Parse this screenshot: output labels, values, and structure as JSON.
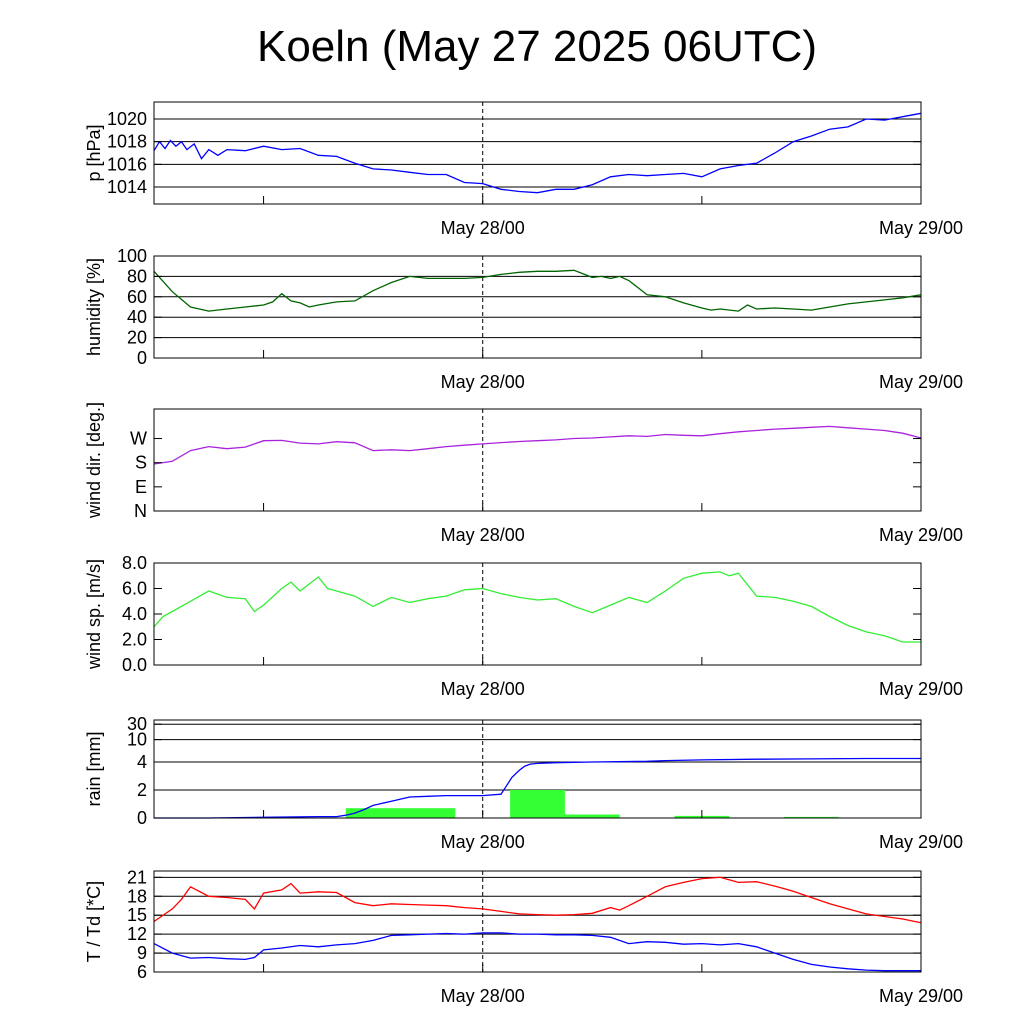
{
  "title": "Koeln (May 27 2025 06UTC)",
  "x_axis": {
    "labels": [
      "May 28/00",
      "May 29/00"
    ],
    "range_hours": [
      0,
      42
    ],
    "label_hours": [
      18,
      42
    ],
    "tick_hours": [
      6,
      18,
      30,
      42
    ],
    "dashed_hour": 18
  },
  "chart_data": [
    {
      "type": "line",
      "ylabel": "p [hPa]",
      "ylim": [
        1012.5,
        1021.5
      ],
      "yticks": [
        1014,
        1016,
        1018,
        1020
      ],
      "tick_labels": [
        "1014",
        "1016",
        "1018",
        "1020"
      ],
      "grid": true,
      "series": [
        {
          "color": "#0000ff",
          "x": [
            0,
            0.3,
            0.6,
            0.9,
            1.2,
            1.5,
            1.8,
            2.2,
            2.6,
            3,
            3.5,
            4,
            5,
            6,
            7,
            8,
            9,
            10,
            11,
            12,
            13,
            14,
            15,
            16,
            17,
            18,
            19,
            20,
            21,
            22,
            23,
            24,
            25,
            26,
            27,
            28,
            29,
            30,
            31,
            32,
            33,
            34,
            35,
            36,
            37,
            38,
            39,
            40,
            41,
            42
          ],
          "values": [
            1017.2,
            1018.0,
            1017.4,
            1018.1,
            1017.6,
            1018.0,
            1017.3,
            1017.8,
            1016.5,
            1017.3,
            1016.8,
            1017.3,
            1017.2,
            1017.6,
            1017.3,
            1017.4,
            1016.8,
            1016.7,
            1016.1,
            1015.6,
            1015.5,
            1015.3,
            1015.1,
            1015.1,
            1014.4,
            1014.3,
            1013.8,
            1013.6,
            1013.5,
            1013.8,
            1013.8,
            1014.2,
            1014.9,
            1015.1,
            1015.0,
            1015.1,
            1015.2,
            1014.9,
            1015.6,
            1015.9,
            1016.1,
            1017.0,
            1018.0,
            1018.5,
            1019.1,
            1019.3,
            1020.0,
            1019.9,
            1020.2,
            1020.5
          ]
        }
      ]
    },
    {
      "type": "line",
      "ylabel": "humidity [%]",
      "ylim": [
        0,
        100
      ],
      "yticks": [
        0,
        20,
        40,
        60,
        80,
        100
      ],
      "tick_labels": [
        "0",
        "20",
        "40",
        "60",
        "80",
        "100"
      ],
      "grid": true,
      "series": [
        {
          "color": "#006400",
          "x": [
            0,
            1,
            2,
            3,
            4,
            5,
            6,
            6.5,
            7,
            7.5,
            8,
            8.5,
            9,
            10,
            11,
            12,
            13,
            14,
            15,
            16,
            17,
            18,
            19,
            20,
            21,
            22,
            23,
            24,
            24.5,
            25,
            25.5,
            26,
            27,
            28,
            29,
            30,
            30.5,
            31,
            32,
            32.5,
            33,
            34,
            35,
            36,
            37,
            38,
            39,
            40,
            41,
            42
          ],
          "values": [
            85,
            65,
            50,
            46,
            48,
            50,
            52,
            55,
            63,
            56,
            54,
            50,
            52,
            55,
            56,
            66,
            74,
            80,
            78,
            78,
            78,
            79,
            82,
            84,
            85,
            85,
            86,
            79,
            80,
            78,
            80,
            76,
            62,
            60,
            54,
            49,
            47,
            48,
            46,
            52,
            48,
            49,
            48,
            47,
            50,
            53,
            55,
            57,
            59,
            62
          ]
        }
      ]
    },
    {
      "type": "line",
      "ylabel": "wind dir. [deg.]",
      "ylim": [
        0,
        380
      ],
      "yticks": [
        0,
        90,
        180,
        270
      ],
      "tick_labels": [
        "N",
        "E",
        "S",
        "W"
      ],
      "grid": false,
      "series": [
        {
          "color": "#aa22dd",
          "x": [
            0,
            1,
            2,
            3,
            4,
            5,
            6,
            7,
            8,
            9,
            10,
            11,
            12,
            13,
            14,
            15,
            16,
            17,
            18,
            19,
            20,
            21,
            22,
            23,
            24,
            25,
            26,
            27,
            28,
            29,
            30,
            31,
            32,
            33,
            34,
            35,
            36,
            37,
            38,
            39,
            40,
            41,
            42
          ],
          "values": [
            175,
            185,
            225,
            240,
            232,
            238,
            262,
            263,
            253,
            250,
            258,
            254,
            225,
            228,
            225,
            232,
            240,
            245,
            250,
            255,
            259,
            262,
            265,
            270,
            272,
            276,
            280,
            278,
            285,
            282,
            280,
            288,
            295,
            300,
            305,
            308,
            312,
            315,
            310,
            305,
            300,
            290,
            272
          ]
        }
      ]
    },
    {
      "type": "line",
      "ylabel": "wind sp. [m/s]",
      "ylim": [
        0,
        8
      ],
      "yticks": [
        0,
        2,
        4,
        6,
        8
      ],
      "tick_labels": [
        "0.0",
        "2.0",
        "4.0",
        "6.0",
        "8.0"
      ],
      "grid": false,
      "series": [
        {
          "color": "#33ee33",
          "x": [
            0,
            0.5,
            1,
            2,
            3,
            4,
            5,
            5.5,
            6,
            7,
            7.5,
            8,
            9,
            9.5,
            10,
            11,
            12,
            13,
            14,
            15,
            16,
            17,
            18,
            19,
            20,
            21,
            22,
            23,
            24,
            25,
            26,
            27,
            28,
            29,
            30,
            31,
            31.5,
            32,
            33,
            34,
            35,
            36,
            37,
            38,
            39,
            40,
            41,
            42
          ],
          "values": [
            3.0,
            3.8,
            4.2,
            5.0,
            5.8,
            5.3,
            5.2,
            4.2,
            4.7,
            6.0,
            6.5,
            5.8,
            6.9,
            6.0,
            5.8,
            5.4,
            4.6,
            5.3,
            4.9,
            5.2,
            5.4,
            5.9,
            6.0,
            5.6,
            5.3,
            5.1,
            5.2,
            4.6,
            4.1,
            4.7,
            5.3,
            4.9,
            5.8,
            6.8,
            7.2,
            7.3,
            7.0,
            7.2,
            5.4,
            5.3,
            5.0,
            4.6,
            3.8,
            3.1,
            2.6,
            2.3,
            1.8,
            1.8
          ]
        }
      ]
    },
    {
      "type": "bar",
      "ylabel": "rain [mm]",
      "ylim_display": [
        0,
        7
      ],
      "yticks_display": [
        0,
        2,
        4,
        5.6,
        6.7
      ],
      "tick_labels": [
        "0",
        "2",
        "4",
        "10",
        "30"
      ],
      "grid": true,
      "bars": [
        {
          "x0": 10.5,
          "x1": 16.5,
          "value": 0.7
        },
        {
          "x0": 19.5,
          "x1": 22.5,
          "value": 2.0
        },
        {
          "x0": 22.5,
          "x1": 25.5,
          "value": 0.25
        },
        {
          "x0": 28.5,
          "x1": 31.5,
          "value": 0.15
        },
        {
          "x0": 34.5,
          "x1": 37.5,
          "value": 0.08
        }
      ],
      "bar_color": "#33ff33",
      "series": [
        {
          "color": "#0000ff",
          "x": [
            0,
            3,
            6,
            9,
            10,
            10.5,
            11,
            11.5,
            12,
            13,
            14,
            15,
            16,
            17,
            18,
            19,
            19.3,
            19.6,
            20,
            20.3,
            20.6,
            21,
            22,
            24,
            27,
            28,
            30,
            33,
            36,
            39,
            42
          ],
          "values": [
            0,
            0,
            0.05,
            0.1,
            0.1,
            0.2,
            0.35,
            0.6,
            0.9,
            1.2,
            1.5,
            1.55,
            1.6,
            1.6,
            1.6,
            1.7,
            2.3,
            2.9,
            3.4,
            3.7,
            3.85,
            3.9,
            3.95,
            4.0,
            4.05,
            4.1,
            4.15,
            4.2,
            4.22,
            4.25,
            4.25
          ]
        }
      ]
    },
    {
      "type": "line",
      "ylabel": "T / Td [*C]",
      "ylim": [
        6,
        22
      ],
      "yticks": [
        6,
        9,
        12,
        15,
        18,
        21
      ],
      "tick_labels": [
        "6",
        "9",
        "12",
        "15",
        "18",
        "21"
      ],
      "grid": true,
      "series": [
        {
          "color": "#ff0000",
          "x": [
            0,
            1,
            1.5,
            2,
            3,
            4,
            5,
            5.5,
            6,
            7,
            7.5,
            8,
            9,
            10,
            11,
            12,
            13,
            14,
            15,
            16,
            17,
            18,
            19,
            20,
            21,
            22,
            23,
            24,
            25,
            25.5,
            26,
            27,
            28,
            29,
            30,
            31,
            32,
            33,
            34,
            35,
            36,
            37,
            38,
            39,
            40,
            41,
            42
          ],
          "values": [
            14.0,
            16.0,
            17.5,
            19.5,
            18.0,
            17.8,
            17.5,
            16.0,
            18.5,
            19.0,
            20.0,
            18.5,
            18.7,
            18.6,
            17.0,
            16.5,
            16.8,
            16.7,
            16.6,
            16.5,
            16.2,
            16.0,
            15.6,
            15.2,
            15.1,
            15.0,
            15.1,
            15.3,
            16.2,
            15.8,
            16.5,
            18.0,
            19.5,
            20.2,
            20.8,
            21.0,
            20.2,
            20.3,
            19.6,
            18.8,
            17.8,
            16.8,
            16.0,
            15.2,
            14.8,
            14.4,
            13.8
          ]
        },
        {
          "color": "#0000ff",
          "x": [
            0,
            1,
            2,
            3,
            4,
            5,
            5.5,
            6,
            7,
            8,
            9,
            10,
            11,
            12,
            13,
            14,
            15,
            16,
            17,
            18,
            19,
            20,
            21,
            22,
            23,
            24,
            25,
            26,
            27,
            28,
            29,
            30,
            31,
            32,
            33,
            34,
            35,
            36,
            37,
            38,
            39,
            40,
            41,
            42
          ],
          "values": [
            10.5,
            9.0,
            8.2,
            8.3,
            8.1,
            8.0,
            8.3,
            9.5,
            9.8,
            10.2,
            10.0,
            10.3,
            10.5,
            11.0,
            11.8,
            11.9,
            12.0,
            12.1,
            12.0,
            12.2,
            12.2,
            12.0,
            12.0,
            11.9,
            11.9,
            11.8,
            11.5,
            10.5,
            10.8,
            10.7,
            10.4,
            10.5,
            10.3,
            10.5,
            10.0,
            9.0,
            8.0,
            7.2,
            6.8,
            6.5,
            6.3,
            6.2,
            6.2,
            6.2
          ]
        }
      ]
    }
  ]
}
